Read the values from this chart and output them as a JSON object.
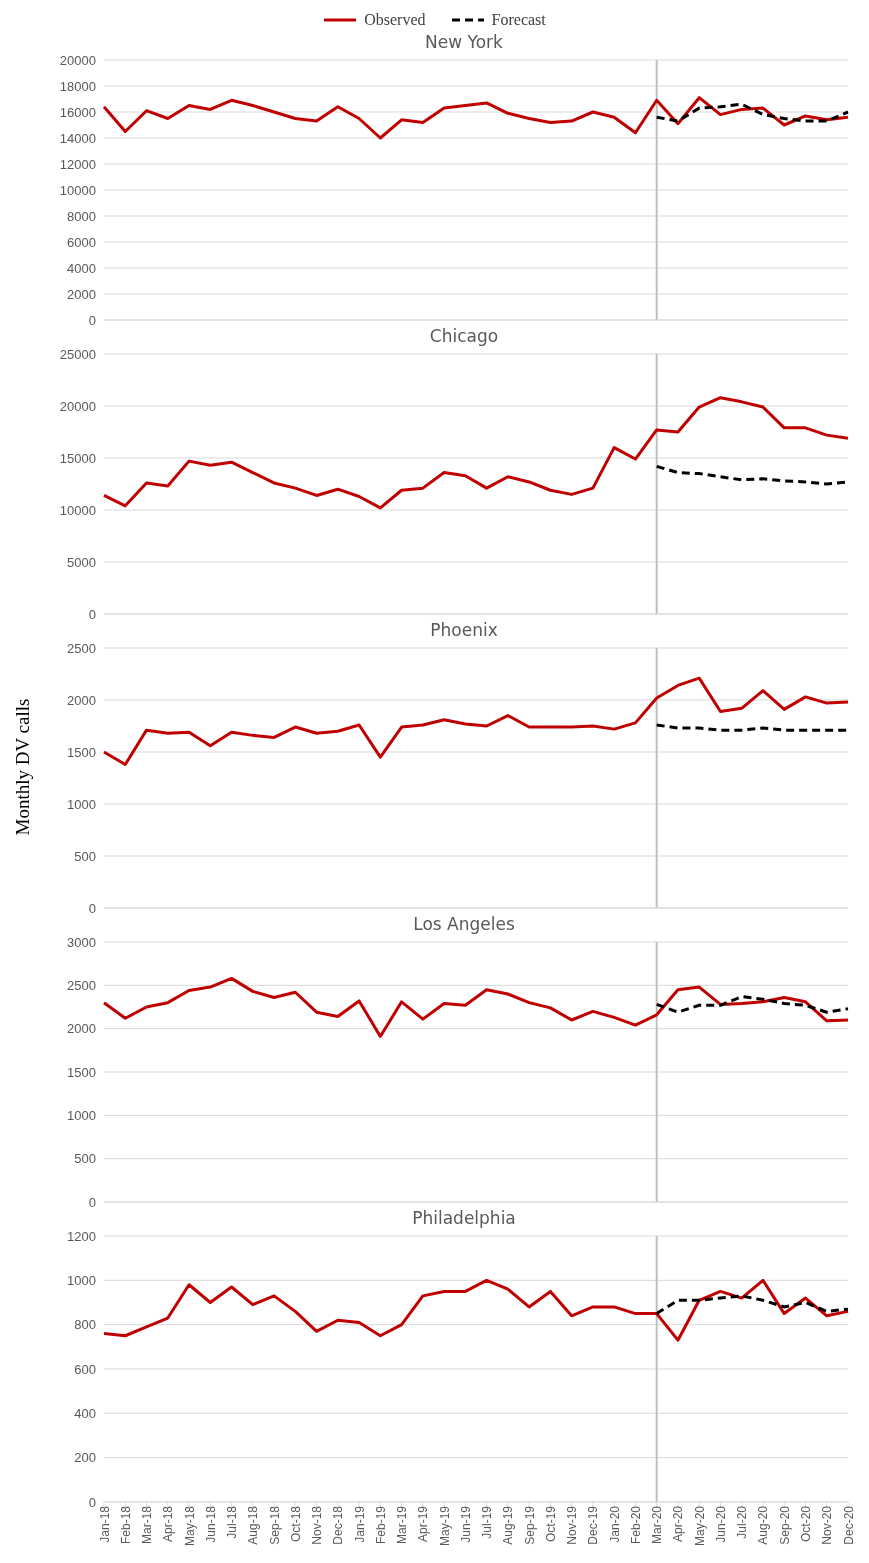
{
  "chart_data": [
    {
      "type": "line",
      "title": "New York",
      "legend": "top",
      "grid": "y",
      "tick_labels": "y",
      "categories": [
        "Jan-18",
        "Feb-18",
        "Mar-18",
        "Apr-18",
        "May-18",
        "Jun-18",
        "Jul-18",
        "Aug-18",
        "Sep-18",
        "Oct-18",
        "Nov-18",
        "Dec-18",
        "Jan-19",
        "Feb-19",
        "Mar-19",
        "Apr-19",
        "May-19",
        "Jun-19",
        "Jul-19",
        "Aug-19",
        "Sep-19",
        "Oct-19",
        "Nov-19",
        "Dec-19",
        "Jan-20",
        "Feb-20",
        "Mar-20",
        "Apr-20",
        "May-20",
        "Jun-20",
        "Jul-20",
        "Aug-20",
        "Sep-20",
        "Oct-20",
        "Nov-20",
        "Dec-20"
      ],
      "ylim": [
        0,
        20000
      ],
      "yticks": [
        0,
        2000,
        4000,
        6000,
        8000,
        10000,
        12000,
        14000,
        16000,
        18000,
        20000
      ],
      "ref_lines": [
        {
          "axis": "x",
          "value": "Mar-20",
          "color": "#bfbfbf"
        }
      ],
      "series": [
        {
          "name": "Observed",
          "color": "#c00000",
          "line_style": "solid",
          "values": [
            16400,
            14500,
            16100,
            15500,
            16500,
            16200,
            16900,
            16500,
            16000,
            15500,
            15300,
            16400,
            15500,
            14000,
            15400,
            15200,
            16300,
            16500,
            16700,
            15900,
            15500,
            15200,
            15300,
            16000,
            15600,
            14400,
            16900,
            15100,
            17100,
            15800,
            16200,
            16300,
            15000,
            15700,
            15400,
            15600
          ]
        },
        {
          "name": "Forecast",
          "color": "#000000",
          "line_style": "dashed",
          "values": [
            null,
            null,
            null,
            null,
            null,
            null,
            null,
            null,
            null,
            null,
            null,
            null,
            null,
            null,
            null,
            null,
            null,
            null,
            null,
            null,
            null,
            null,
            null,
            null,
            null,
            null,
            15600,
            15300,
            16300,
            16400,
            16600,
            15800,
            15500,
            15300,
            15300,
            16000
          ]
        }
      ]
    },
    {
      "type": "line",
      "title": "Chicago",
      "grid": "y",
      "tick_labels": "y",
      "categories": [
        "Jan-18",
        "Feb-18",
        "Mar-18",
        "Apr-18",
        "May-18",
        "Jun-18",
        "Jul-18",
        "Aug-18",
        "Sep-18",
        "Oct-18",
        "Nov-18",
        "Dec-18",
        "Jan-19",
        "Feb-19",
        "Mar-19",
        "Apr-19",
        "May-19",
        "Jun-19",
        "Jul-19",
        "Aug-19",
        "Sep-19",
        "Oct-19",
        "Nov-19",
        "Dec-19",
        "Jan-20",
        "Feb-20",
        "Mar-20",
        "Apr-20",
        "May-20",
        "Jun-20",
        "Jul-20",
        "Aug-20",
        "Sep-20",
        "Oct-20",
        "Nov-20",
        "Dec-20"
      ],
      "ylim": [
        0,
        25000
      ],
      "yticks": [
        0,
        5000,
        10000,
        15000,
        20000,
        25000
      ],
      "ref_lines": [
        {
          "axis": "x",
          "value": "Mar-20",
          "color": "#bfbfbf"
        }
      ],
      "series": [
        {
          "color": "#c00000",
          "line_style": "solid",
          "values": [
            11400,
            10400,
            12600,
            12300,
            14700,
            14300,
            14600,
            13600,
            12600,
            12100,
            11400,
            12000,
            11300,
            10200,
            11900,
            12100,
            13600,
            13300,
            12100,
            13200,
            12700,
            11900,
            11500,
            12100,
            16000,
            14900,
            17700,
            17500,
            19900,
            20800,
            20400,
            19900,
            17900,
            17900,
            17200,
            16900
          ]
        },
        {
          "color": "#000000",
          "line_style": "dashed",
          "values": [
            null,
            null,
            null,
            null,
            null,
            null,
            null,
            null,
            null,
            null,
            null,
            null,
            null,
            null,
            null,
            null,
            null,
            null,
            null,
            null,
            null,
            null,
            null,
            null,
            null,
            null,
            14200,
            13600,
            13500,
            13200,
            12900,
            13000,
            12800,
            12700,
            12500,
            12700
          ]
        }
      ]
    },
    {
      "type": "line",
      "title": "Phoenix",
      "ylabel": "Monthly DV calls",
      "grid": "y",
      "tick_labels": "y",
      "categories": [
        "Jan-18",
        "Feb-18",
        "Mar-18",
        "Apr-18",
        "May-18",
        "Jun-18",
        "Jul-18",
        "Aug-18",
        "Sep-18",
        "Oct-18",
        "Nov-18",
        "Dec-18",
        "Jan-19",
        "Feb-19",
        "Mar-19",
        "Apr-19",
        "May-19",
        "Jun-19",
        "Jul-19",
        "Aug-19",
        "Sep-19",
        "Oct-19",
        "Nov-19",
        "Dec-19",
        "Jan-20",
        "Feb-20",
        "Mar-20",
        "Apr-20",
        "May-20",
        "Jun-20",
        "Jul-20",
        "Aug-20",
        "Sep-20",
        "Oct-20",
        "Nov-20",
        "Dec-20"
      ],
      "ylim": [
        0,
        2500
      ],
      "yticks": [
        0,
        500,
        1000,
        1500,
        2000,
        2500
      ],
      "ref_lines": [
        {
          "axis": "x",
          "value": "Mar-20",
          "color": "#bfbfbf"
        }
      ],
      "series": [
        {
          "color": "#c00000",
          "line_style": "solid",
          "values": [
            1500,
            1380,
            1710,
            1680,
            1690,
            1560,
            1690,
            1660,
            1640,
            1740,
            1680,
            1700,
            1760,
            1450,
            1740,
            1760,
            1810,
            1770,
            1750,
            1850,
            1740,
            1740,
            1740,
            1750,
            1720,
            1780,
            2020,
            2140,
            2210,
            1890,
            1920,
            2090,
            1910,
            2030,
            1970,
            1980
          ]
        },
        {
          "color": "#000000",
          "line_style": "dashed",
          "values": [
            null,
            null,
            null,
            null,
            null,
            null,
            null,
            null,
            null,
            null,
            null,
            null,
            null,
            null,
            null,
            null,
            null,
            null,
            null,
            null,
            null,
            null,
            null,
            null,
            null,
            null,
            1760,
            1730,
            1730,
            1710,
            1710,
            1730,
            1710,
            1710,
            1710,
            1710
          ]
        }
      ]
    },
    {
      "type": "line",
      "title": "Los Angeles",
      "grid": "y",
      "tick_labels": "y",
      "categories": [
        "Jan-18",
        "Feb-18",
        "Mar-18",
        "Apr-18",
        "May-18",
        "Jun-18",
        "Jul-18",
        "Aug-18",
        "Sep-18",
        "Oct-18",
        "Nov-18",
        "Dec-18",
        "Jan-19",
        "Feb-19",
        "Mar-19",
        "Apr-19",
        "May-19",
        "Jun-19",
        "Jul-19",
        "Aug-19",
        "Sep-19",
        "Oct-19",
        "Nov-19",
        "Dec-19",
        "Jan-20",
        "Feb-20",
        "Mar-20",
        "Apr-20",
        "May-20",
        "Jun-20",
        "Jul-20",
        "Aug-20",
        "Sep-20",
        "Oct-20",
        "Nov-20",
        "Dec-20"
      ],
      "ylim": [
        0,
        3000
      ],
      "yticks": [
        0,
        500,
        1000,
        1500,
        2000,
        2500,
        3000
      ],
      "ref_lines": [
        {
          "axis": "x",
          "value": "Mar-20",
          "color": "#bfbfbf"
        }
      ],
      "series": [
        {
          "color": "#c00000",
          "line_style": "solid",
          "values": [
            2300,
            2120,
            2250,
            2300,
            2440,
            2480,
            2580,
            2430,
            2360,
            2420,
            2190,
            2140,
            2320,
            1910,
            2310,
            2110,
            2290,
            2270,
            2450,
            2400,
            2300,
            2240,
            2100,
            2200,
            2130,
            2040,
            2160,
            2450,
            2480,
            2280,
            2290,
            2310,
            2360,
            2310,
            2090,
            2100
          ]
        },
        {
          "color": "#000000",
          "line_style": "dashed",
          "values": [
            null,
            null,
            null,
            null,
            null,
            null,
            null,
            null,
            null,
            null,
            null,
            null,
            null,
            null,
            null,
            null,
            null,
            null,
            null,
            null,
            null,
            null,
            null,
            null,
            null,
            null,
            2280,
            2190,
            2270,
            2270,
            2370,
            2340,
            2290,
            2270,
            2190,
            2230
          ]
        }
      ]
    },
    {
      "type": "line",
      "title": "Philadelphia",
      "grid": "y",
      "categories": [
        "Jan-18",
        "Feb-18",
        "Mar-18",
        "Apr-18",
        "May-18",
        "Jun-18",
        "Jul-18",
        "Aug-18",
        "Sep-18",
        "Oct-18",
        "Nov-18",
        "Dec-18",
        "Jan-19",
        "Feb-19",
        "Mar-19",
        "Apr-19",
        "May-19",
        "Jun-19",
        "Jul-19",
        "Aug-19",
        "Sep-19",
        "Oct-19",
        "Nov-19",
        "Dec-19",
        "Jan-20",
        "Feb-20",
        "Mar-20",
        "Apr-20",
        "May-20",
        "Jun-20",
        "Jul-20",
        "Aug-20",
        "Sep-20",
        "Oct-20",
        "Nov-20",
        "Dec-20"
      ],
      "ylim": [
        0,
        1200
      ],
      "yticks": [
        0,
        200,
        400,
        600,
        800,
        1000,
        1200
      ],
      "ref_lines": [
        {
          "axis": "x",
          "value": "Mar-20",
          "color": "#bfbfbf"
        }
      ],
      "series": [
        {
          "color": "#c00000",
          "line_style": "solid",
          "values": [
            760,
            750,
            790,
            830,
            980,
            900,
            970,
            890,
            930,
            860,
            770,
            820,
            810,
            750,
            800,
            930,
            950,
            950,
            1000,
            960,
            880,
            950,
            840,
            880,
            880,
            850,
            850,
            730,
            910,
            950,
            920,
            1000,
            850,
            920,
            840,
            860
          ]
        },
        {
          "color": "#000000",
          "line_style": "dashed",
          "values": [
            null,
            null,
            null,
            null,
            null,
            null,
            null,
            null,
            null,
            null,
            null,
            null,
            null,
            null,
            null,
            null,
            null,
            null,
            null,
            null,
            null,
            null,
            null,
            null,
            null,
            null,
            850,
            910,
            910,
            920,
            930,
            910,
            880,
            900,
            860,
            870
          ]
        }
      ]
    }
  ]
}
